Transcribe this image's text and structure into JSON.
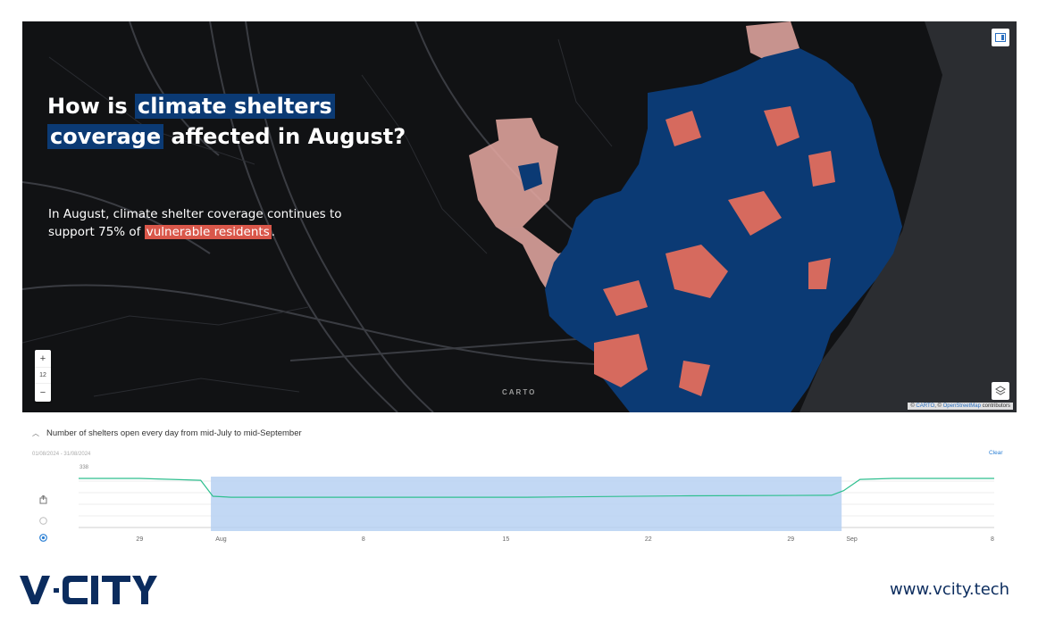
{
  "map": {
    "headline_plain_1": "How is ",
    "headline_hl_1": "climate shelters",
    "headline_hl_2": "coverage",
    "headline_plain_2": " affected in August?",
    "subtext_1": "In August, climate shelter coverage continues to support 75% of ",
    "subtext_hl": "vulnerable residents",
    "subtext_end": ".",
    "zoom_in": "+",
    "zoom_level": "12",
    "zoom_out": "−",
    "carto_label": "CARTO",
    "attribution": {
      "prefix": "© ",
      "carto": "CARTO",
      "sep": ", © ",
      "osm": "OpenStreetMap",
      "suffix": " contributors"
    },
    "colors": {
      "coverage": "#0b3a74",
      "uncovered": "#d66a5e",
      "uncovered_light": "#e8aaa3",
      "land": "#111214",
      "sea": "#2b2d31"
    }
  },
  "timeline": {
    "title": "Number of shelters open every day from mid-July to mid-September",
    "date_range": "01/08/2024 - 31/08/2024",
    "clear_label": "Clear",
    "y_max_label": "338",
    "x_ticks": [
      "29",
      "Aug",
      "8",
      "15",
      "22",
      "29",
      "Sep",
      "8"
    ],
    "selection": {
      "start_day": 1,
      "end_day": 31,
      "color": "#b7d1f2"
    },
    "series": {
      "line_color": "#2fbf8f",
      "values_profile": [
        338,
        338,
        337,
        336,
        318,
        318,
        320,
        320,
        338,
        338,
        338
      ]
    }
  },
  "footer": {
    "logo_text": "VCITY",
    "url": "www.vcity.tech"
  }
}
